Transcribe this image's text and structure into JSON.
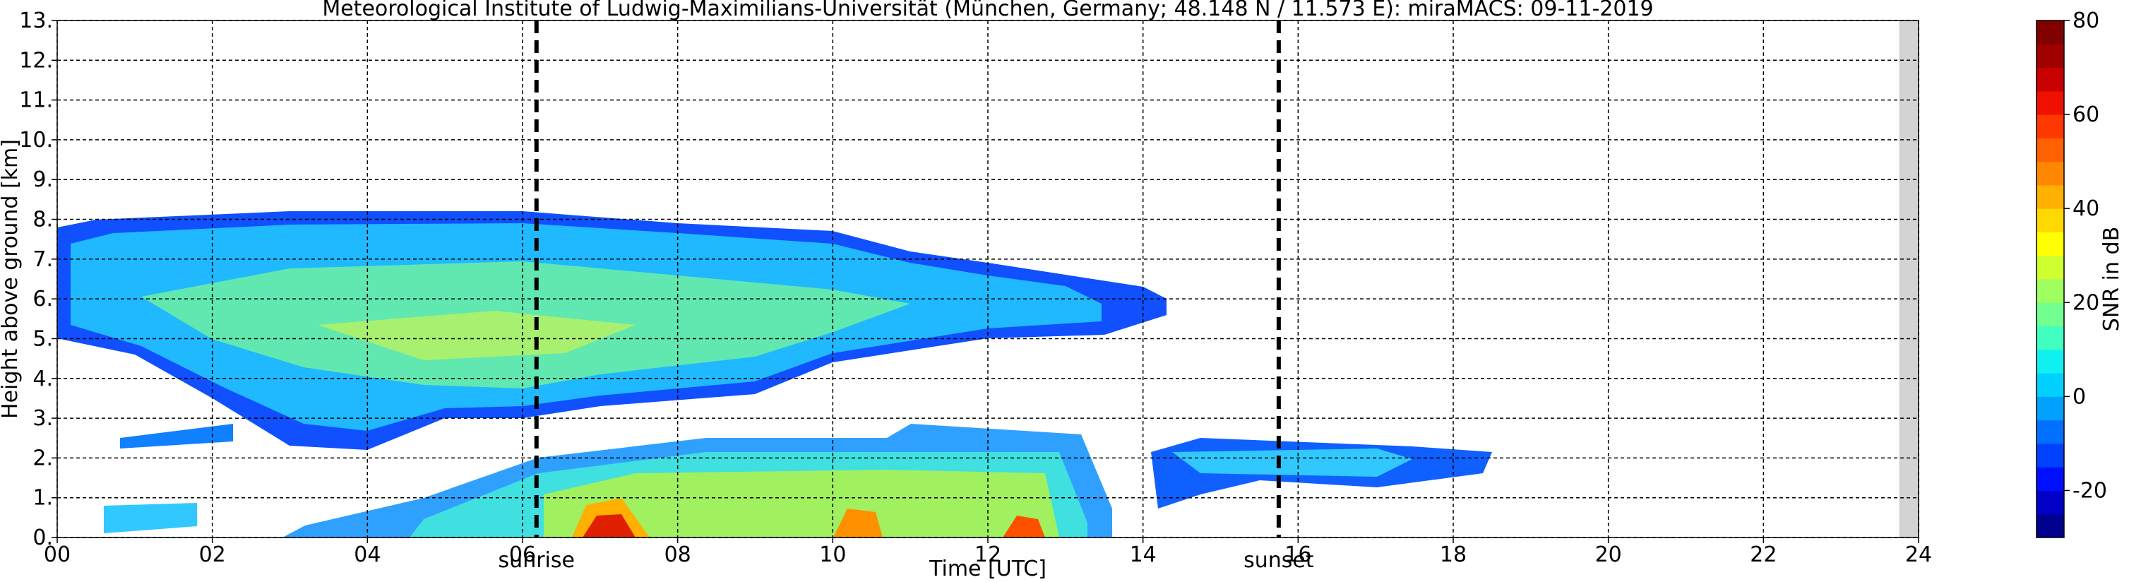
{
  "chart_data": {
    "type": "heatmap",
    "title": "Meteorological Institute of Ludwig-Maximilians-Universität (München, Germany; 48.148 N / 11.573 E):    miraMACS: 09-11-2019",
    "xlabel": "Time [UTC]",
    "ylabel": "Height above ground [km]",
    "xlim": [
      0,
      24
    ],
    "ylim": [
      0,
      13
    ],
    "xticks": [
      {
        "value": 0,
        "label": "00"
      },
      {
        "value": 2,
        "label": "02"
      },
      {
        "value": 4,
        "label": "04"
      },
      {
        "value": 6,
        "label": "06"
      },
      {
        "value": 8,
        "label": "08"
      },
      {
        "value": 10,
        "label": "10"
      },
      {
        "value": 12,
        "label": "12"
      },
      {
        "value": 14,
        "label": "14"
      },
      {
        "value": 16,
        "label": "16"
      },
      {
        "value": 18,
        "label": "18"
      },
      {
        "value": 20,
        "label": "20"
      },
      {
        "value": 22,
        "label": "22"
      },
      {
        "value": 24,
        "label": "24"
      }
    ],
    "yticks": [
      {
        "value": 0,
        "label": "0."
      },
      {
        "value": 1,
        "label": "1."
      },
      {
        "value": 2,
        "label": "2."
      },
      {
        "value": 3,
        "label": "3."
      },
      {
        "value": 4,
        "label": "4."
      },
      {
        "value": 5,
        "label": "5."
      },
      {
        "value": 6,
        "label": "6."
      },
      {
        "value": 7,
        "label": "7."
      },
      {
        "value": 8,
        "label": "8."
      },
      {
        "value": 9,
        "label": "9."
      },
      {
        "value": 10,
        "label": "10."
      },
      {
        "value": 11,
        "label": "11."
      },
      {
        "value": 12,
        "label": "12."
      },
      {
        "value": 13,
        "label": "13."
      }
    ],
    "grid": true,
    "missing_span": [
      23.75,
      24
    ],
    "annotations": [
      {
        "x": 6.18,
        "label": "sunrise"
      },
      {
        "x": 15.75,
        "label": "sunset"
      }
    ],
    "colorbar": {
      "label": "SNR in dB",
      "lim": [
        -30,
        80
      ],
      "ticks": [
        -20,
        0,
        20,
        40,
        60,
        80
      ],
      "colors": [
        "#00008f",
        "#0000c8",
        "#0010ff",
        "#0040ff",
        "#0070ff",
        "#00a0ff",
        "#00d0ff",
        "#10f0f0",
        "#40ffc0",
        "#70ff90",
        "#a0ff60",
        "#d0ff30",
        "#ffff00",
        "#ffd800",
        "#ffb000",
        "#ff8800",
        "#ff6000",
        "#ff3800",
        "#f01000",
        "#c80000",
        "#a00000",
        "#800000"
      ]
    }
  }
}
